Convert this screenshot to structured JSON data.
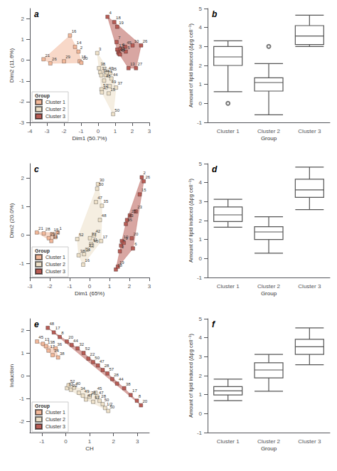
{
  "chart_data": [
    {
      "type": "scatter",
      "title": "a",
      "xlabel": "Dim1 (50.7%)",
      "ylabel": "Dim2 (11.6%)",
      "xlim": [
        -4,
        3
      ],
      "xticks": [
        -4,
        -3,
        -2,
        -1,
        0,
        1,
        2,
        3
      ],
      "ylim": [
        -3,
        2.5
      ],
      "yticks": [
        -3,
        -2,
        -1,
        0,
        1,
        2
      ],
      "grid": false,
      "legend": "lower left",
      "legend_title": "Group",
      "series": [
        {
          "name": "Cluster 1",
          "color": "#f2b89a",
          "x": [
            -3.2,
            -2.8,
            -2.0,
            -1.65,
            -1.35,
            -1.15,
            -1.08,
            -0.98
          ],
          "values": [
            0.05,
            -0.15,
            -0.05,
            1.2,
            0.65,
            0.42,
            -0.05,
            -0.12
          ],
          "labels": [
            "21",
            "26",
            "29",
            "16",
            "14",
            "2",
            "15",
            "20"
          ]
        },
        {
          "name": "Cluster 2",
          "color": "#ede0c8",
          "x": [
            -0.05,
            0.05,
            0.12,
            0.18,
            0.2,
            0.22,
            0.35,
            0.45,
            0.52,
            0.62,
            0.68,
            0.72,
            0.78,
            0.88,
            1.05
          ],
          "values": [
            0.35,
            -0.38,
            -0.58,
            -0.72,
            -1.4,
            -1.55,
            -0.98,
            -0.72,
            -0.58,
            -1.6,
            -1.25,
            -0.62,
            -0.88,
            -2.6,
            -1.32
          ],
          "labels": [
            "3",
            "38",
            "32",
            "34",
            "52",
            "47",
            "48",
            "41",
            "40",
            "15",
            "49",
            "35",
            "44",
            "50",
            "37"
          ]
        },
        {
          "name": "Cluster 3",
          "color": "#b85c55",
          "x": [
            0.55,
            0.95,
            1.12,
            1.08,
            1.12,
            1.18,
            1.22,
            1.28,
            1.32,
            1.58,
            1.62,
            1.78,
            2.02,
            2.22,
            2.52
          ],
          "values": [
            2.1,
            1.85,
            1.62,
            0.88,
            0.52,
            0.38,
            0.32,
            0.28,
            0.55,
            0.65,
            0.42,
            -0.38,
            0.72,
            -0.38,
            0.72
          ],
          "labels": [
            "4",
            "18",
            "19",
            "7",
            "17",
            "23",
            "24",
            "6",
            "9",
            "45",
            "5",
            "13",
            "10",
            "27",
            "26"
          ]
        }
      ]
    },
    {
      "type": "box",
      "title": "b",
      "xlabel": "Group",
      "ylabel": "Amount of lipid induced (Δpg cell⁻¹)",
      "ylim": [
        -1,
        5
      ],
      "yticks": [
        -1,
        0,
        1,
        2,
        3,
        4,
        5
      ],
      "grid": false,
      "categories": [
        "Cluster 1",
        "Cluster 2",
        "Cluster 3"
      ],
      "boxes": [
        {
          "whislo": 0.62,
          "q1": 2.0,
          "med": 2.45,
          "q3": 3.0,
          "whishi": 3.3,
          "fliers": [
            0.0
          ]
        },
        {
          "whislo": -0.6,
          "q1": 0.65,
          "med": 1.1,
          "q3": 1.35,
          "whishi": 2.1,
          "fliers": [
            3.0
          ]
        },
        {
          "whislo": 3.0,
          "q1": 3.1,
          "med": 3.55,
          "q3": 4.1,
          "whishi": 4.65,
          "fliers": []
        }
      ]
    },
    {
      "type": "scatter",
      "title": "c",
      "xlabel": "Dim1 (65%)",
      "ylabel": "Dim2 (20.0%)",
      "xlim": [
        -3,
        3
      ],
      "xticks": [
        -3,
        -2,
        -1,
        0,
        1,
        2,
        3
      ],
      "ylim": [
        -1.5,
        2.5
      ],
      "yticks": [
        -1,
        0,
        1,
        2
      ],
      "grid": false,
      "legend": "lower left",
      "legend_title": "Group",
      "series": [
        {
          "name": "Cluster 1",
          "color": "#f2b89a",
          "x": [
            -2.65,
            -2.3,
            -2.05,
            -1.92,
            -1.88,
            -1.72,
            -1.6
          ],
          "values": [
            0.08,
            0.05,
            -0.12,
            -0.22,
            0.02,
            -0.08,
            0.08
          ],
          "labels": [
            "21",
            "28",
            "29",
            "14",
            "15",
            "2",
            "1"
          ]
        },
        {
          "name": "Cluster 2",
          "color": "#ede0c8",
          "x": [
            -0.62,
            -0.55,
            -0.32,
            -0.28,
            -0.12,
            0.02,
            0.08,
            0.12,
            0.22,
            0.32,
            0.38,
            0.42,
            0.62,
            0.52,
            0.58
          ],
          "values": [
            -0.15,
            -0.72,
            -1.05,
            -0.68,
            -0.52,
            -0.12,
            -0.32,
            -0.38,
            -0.02,
            1.15,
            1.62,
            1.78,
            1.02,
            0.52,
            -0.22
          ],
          "labels": [
            "52",
            "38",
            "16",
            "34",
            "22",
            "32",
            "41",
            "40",
            "42",
            "47",
            "50",
            "30",
            "35",
            "48",
            "17"
          ]
        },
        {
          "name": "Cluster 3",
          "color": "#b85c55",
          "x": [
            1.32,
            1.42,
            1.52,
            1.58,
            1.62,
            1.72,
            1.82,
            1.88,
            2.02,
            2.12,
            2.18,
            2.32,
            2.52,
            2.62,
            2.72
          ],
          "values": [
            -1.22,
            -1.12,
            -0.58,
            -0.38,
            -0.22,
            -0.28,
            0.38,
            0.52,
            0.68,
            -0.12,
            -0.48,
            0.82,
            1.42,
            2.02,
            1.88
          ],
          "labels": [
            "18",
            "19",
            "3",
            "7",
            "10",
            "9",
            "45",
            "43",
            "25",
            "20",
            "6",
            "23",
            "15",
            "2",
            "26"
          ]
        }
      ]
    },
    {
      "type": "box",
      "title": "d",
      "xlabel": "Group",
      "ylabel": "Amount of lipid induced (Δpg cell⁻¹)",
      "ylim": [
        -1,
        5
      ],
      "yticks": [
        -1,
        0,
        1,
        2,
        3,
        4,
        5
      ],
      "grid": false,
      "categories": [
        "Cluster 1",
        "Cluster 2",
        "Cluster 3"
      ],
      "boxes": [
        {
          "whislo": 1.65,
          "q1": 1.95,
          "med": 2.3,
          "q3": 2.72,
          "whishi": 3.12,
          "fliers": []
        },
        {
          "whislo": 0.28,
          "q1": 1.0,
          "med": 1.4,
          "q3": 1.68,
          "whishi": 2.2,
          "fliers": []
        },
        {
          "whislo": 2.58,
          "q1": 3.22,
          "med": 3.62,
          "q3": 4.18,
          "whishi": 4.82,
          "fliers": []
        }
      ]
    },
    {
      "type": "scatter",
      "title": "e",
      "xlabel": "CH",
      "ylabel": "Induction",
      "xlim": [
        -1.5,
        3.5
      ],
      "xticks": [
        -1,
        0,
        1,
        2,
        3
      ],
      "ylim": [
        -2.5,
        2.5
      ],
      "yticks": [
        -2,
        -1,
        0,
        1,
        2
      ],
      "grid": false,
      "legend": "lower left",
      "legend_title": "Group",
      "series": [
        {
          "name": "Cluster 1",
          "color": "#f2b89a",
          "x": [
            -1.2,
            -0.95,
            -0.82,
            -0.72,
            -0.55,
            -0.42,
            -0.32
          ],
          "values": [
            1.5,
            1.4,
            1.3,
            1.1,
            0.9,
            1.2,
            0.8
          ],
          "labels": [
            "45",
            "13",
            "138",
            "17",
            "24",
            "36",
            "38"
          ]
        },
        {
          "name": "Cluster 2",
          "color": "#ede0c8",
          "x": [
            0.05,
            0.12,
            0.22,
            0.35,
            0.55,
            0.72,
            0.85,
            1.0,
            1.15,
            1.25,
            1.32,
            1.42,
            1.55,
            1.65,
            1.78
          ],
          "values": [
            -0.55,
            -0.42,
            -0.62,
            -0.52,
            -0.75,
            -0.88,
            -1.05,
            -0.92,
            -1.15,
            -0.75,
            -0.92,
            -1.1,
            -1.25,
            -1.42,
            -1.55
          ],
          "labels": [
            "32",
            "52",
            "22",
            "40",
            "34",
            "49",
            "47",
            "28",
            "57",
            "45",
            "47",
            "28",
            "50",
            "1/2",
            "50"
          ]
        },
        {
          "name": "Cluster 3",
          "color": "#b85c55",
          "x": [
            -0.75,
            -0.5,
            -0.25,
            0.05,
            0.25,
            0.5,
            0.75,
            0.95,
            1.15,
            1.35,
            1.55,
            1.75,
            1.95,
            2.15,
            2.45,
            2.72,
            2.98,
            3.15
          ],
          "values": [
            2.1,
            1.9,
            1.7,
            1.5,
            1.35,
            1.2,
            1.0,
            0.75,
            0.6,
            0.45,
            0.25,
            0.1,
            -0.15,
            -0.35,
            -0.55,
            -0.85,
            -1.1,
            -1.3
          ],
          "labels": [
            "48",
            "17",
            "8",
            "20",
            "44",
            "32",
            "52",
            "22",
            "50",
            "47",
            "28",
            "57",
            "28",
            "44",
            "38",
            "17",
            "8",
            "20"
          ]
        }
      ]
    },
    {
      "type": "box",
      "title": "f",
      "xlabel": "Group",
      "ylabel": "Amount of lipid induced (Δpg cell⁻¹)",
      "ylim": [
        -1,
        5
      ],
      "yticks": [
        -1,
        0,
        1,
        2,
        3,
        4,
        5
      ],
      "grid": false,
      "categories": [
        "Cluster 1",
        "Cluster 2",
        "Cluster 3"
      ],
      "boxes": [
        {
          "whislo": 0.68,
          "q1": 0.98,
          "med": 1.2,
          "q3": 1.42,
          "whishi": 1.82,
          "fliers": []
        },
        {
          "whislo": 1.18,
          "q1": 1.88,
          "med": 2.3,
          "q3": 2.68,
          "whishi": 3.12,
          "fliers": []
        },
        {
          "whislo": 2.58,
          "q1": 3.12,
          "med": 3.52,
          "q3": 3.92,
          "whishi": 4.52,
          "fliers": []
        }
      ]
    }
  ]
}
